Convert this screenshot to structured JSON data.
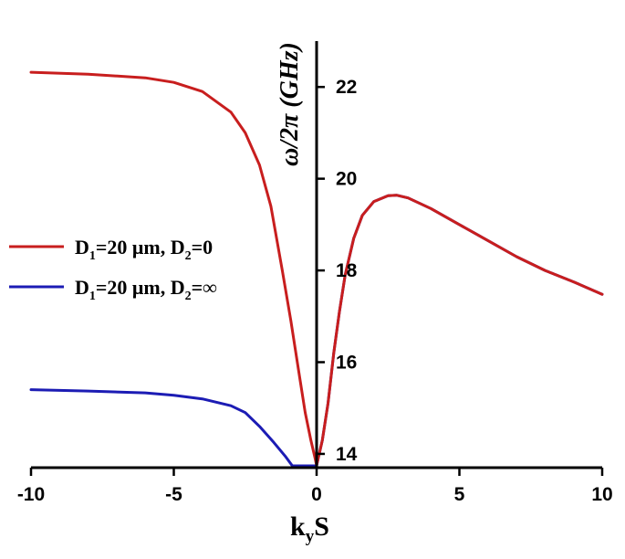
{
  "chart_data": {
    "type": "line",
    "xlabel": "k",
    "xlabel_sub": "y",
    "xlabel_tail": "S",
    "ylabel": "ω/2π (GHz)",
    "xlim": [
      -10,
      10
    ],
    "ylim": [
      13.7,
      23
    ],
    "xticks": [
      -10,
      -5,
      0,
      5,
      10
    ],
    "yticks": [
      14,
      16,
      18,
      20,
      22
    ],
    "y_axis_at_x": 0,
    "grid": false,
    "legend_position": "left",
    "series": [
      {
        "legend_main": "D",
        "legend_sub1": "1",
        "legend_mid": "=20 μm, D",
        "legend_sub2": "2",
        "legend_tail": "=0",
        "color": "#c81e1e",
        "x": [
          -10,
          -8,
          -6,
          -5,
          -4,
          -3,
          -2.5,
          -2,
          -1.6,
          -1.2,
          -0.9,
          -0.6,
          -0.4,
          -0.2,
          -0.05,
          0,
          0.2,
          0.4,
          0.6,
          0.8,
          1.0,
          1.3,
          1.6,
          2.0,
          2.5,
          2.8,
          3.2,
          4,
          5,
          6,
          7,
          8,
          9,
          10
        ],
        "y": [
          22.32,
          22.28,
          22.2,
          22.1,
          21.9,
          21.45,
          21.0,
          20.3,
          19.4,
          18.0,
          16.9,
          15.7,
          14.9,
          14.3,
          13.9,
          13.75,
          14.3,
          15.1,
          16.2,
          17.1,
          17.9,
          18.7,
          19.2,
          19.5,
          19.63,
          19.64,
          19.58,
          19.35,
          19.0,
          18.65,
          18.3,
          18.0,
          17.75,
          17.48
        ]
      },
      {
        "legend_main": "D",
        "legend_sub1": "1",
        "legend_mid": "=20 μm, D",
        "legend_sub2": "2",
        "legend_tail": "=∞",
        "color": "#1c1cb4",
        "x": [
          -10,
          -8,
          -6,
          -5,
          -4,
          -3,
          -2.5,
          -2,
          -1.5,
          -1.1,
          -0.85,
          -0.2,
          -0.05,
          0,
          0.2,
          0.4,
          0.6,
          0.8,
          1.0,
          1.3,
          1.6,
          2.0,
          2.5,
          2.8,
          3.2,
          4,
          5,
          6,
          7,
          8,
          9,
          10
        ],
        "y": [
          15.4,
          15.37,
          15.33,
          15.28,
          15.2,
          15.05,
          14.9,
          14.6,
          14.25,
          13.95,
          13.74,
          13.74,
          13.74,
          13.75,
          14.3,
          15.1,
          16.2,
          17.1,
          17.9,
          18.7,
          19.2,
          19.5,
          19.63,
          19.64,
          19.58,
          19.35,
          19.0,
          18.65,
          18.3,
          18.0,
          17.75,
          17.48
        ]
      }
    ]
  }
}
